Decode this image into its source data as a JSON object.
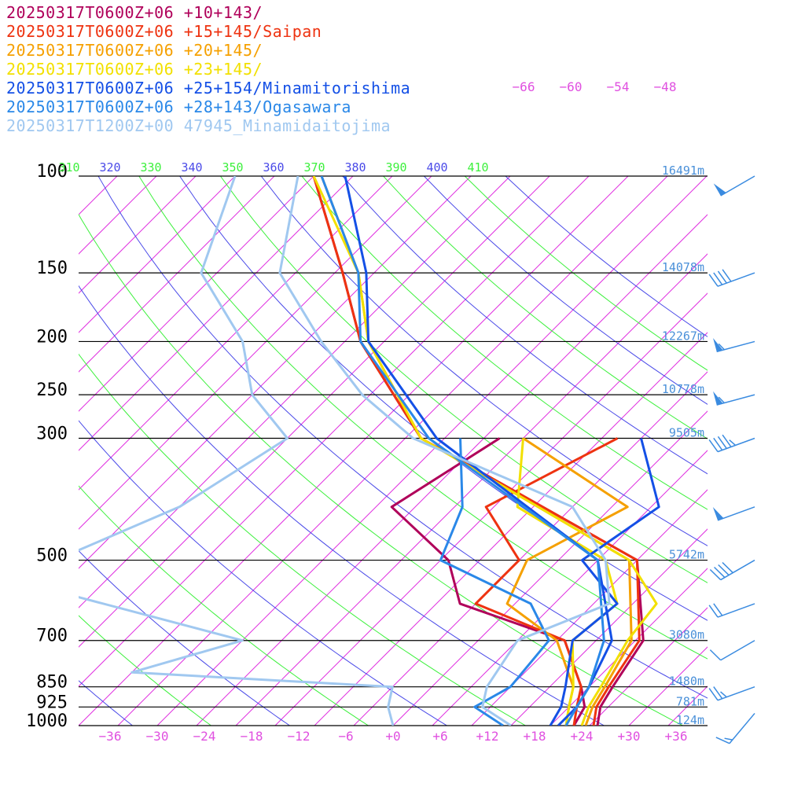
{
  "chart_data": {
    "type": "line",
    "chart_kind": "Skew-T log-P",
    "legend_placement": "top-left",
    "grid": true,
    "pressure_levels": [
      {
        "label": "100",
        "p": 100,
        "height": "16491m"
      },
      {
        "label": "150",
        "p": 150,
        "height": "14078m"
      },
      {
        "label": "200",
        "p": 200,
        "height": "12267m"
      },
      {
        "label": "250",
        "p": 250,
        "height": "10778m"
      },
      {
        "label": "300",
        "p": 300,
        "height": "9505m"
      },
      {
        "label": "500",
        "p": 500,
        "height": "5742m"
      },
      {
        "label": "700",
        "p": 700,
        "height": "3080m"
      },
      {
        "label": "850",
        "p": 850,
        "height": "1480m"
      },
      {
        "label": "925",
        "p": 925,
        "height": "781m"
      },
      {
        "label": "1000",
        "p": 1000,
        "height": "124m"
      }
    ],
    "x_ticks": [
      "−36",
      "−30",
      "−24",
      "−18",
      "−12",
      "−6",
      "+0",
      "+6",
      "+12",
      "+18",
      "+24",
      "+30",
      "+36"
    ],
    "isotherm_labels": [
      "−66",
      "−60",
      "−54",
      "−48"
    ],
    "theta_labels": [
      {
        "text": "310",
        "color": "#3cf03c"
      },
      {
        "text": "320",
        "color": "#4a4ae8"
      },
      {
        "text": "330",
        "color": "#3cf03c"
      },
      {
        "text": "340",
        "color": "#4a4ae8"
      },
      {
        "text": "350",
        "color": "#3cf03c"
      },
      {
        "text": "360",
        "color": "#4a4ae8"
      },
      {
        "text": "370",
        "color": "#3cf03c"
      },
      {
        "text": "380",
        "color": "#4a4ae8"
      },
      {
        "text": "390",
        "color": "#3cf03c"
      },
      {
        "text": "400",
        "color": "#4a4ae8"
      },
      {
        "text": "410",
        "color": "#3cf03c"
      }
    ],
    "colors": {
      "isotherm": "#e030e0",
      "dry_adiabat_a": "#3cf03c",
      "dry_adiabat_b": "#4a4ae8",
      "isobar": "#000000",
      "wind_barb": "#3a8be0",
      "tick_label": "#e050e0",
      "pressure_label": "#000000",
      "height_label": "#4a90d9"
    },
    "series": [
      {
        "name": "20250317T0600Z+06 +10+143/",
        "color": "#b0005a",
        "temp": [
          [
            1000,
            26
          ],
          [
            925,
            24
          ],
          [
            850,
            23
          ],
          [
            700,
            21
          ],
          [
            500,
            10
          ],
          [
            300,
            -33
          ],
          [
            200,
            -53
          ],
          [
            150,
            -64
          ],
          [
            100,
            -80
          ]
        ],
        "dewp": [
          [
            1000,
            23
          ],
          [
            925,
            22
          ],
          [
            850,
            19
          ],
          [
            700,
            11
          ],
          [
            600,
            -7
          ],
          [
            500,
            -14
          ],
          [
            400,
            -28
          ],
          [
            300,
            -23
          ]
        ]
      },
      {
        "name": "20250317T0600Z+06 +15+145/Saipan",
        "color": "#ee3311",
        "temp": [
          [
            1000,
            25.5
          ],
          [
            925,
            23.5
          ],
          [
            850,
            22.5
          ],
          [
            700,
            20.5
          ],
          [
            500,
            10
          ],
          [
            300,
            -33
          ],
          [
            200,
            -53
          ],
          [
            150,
            -64
          ],
          [
            100,
            -80
          ]
        ],
        "dewp": [
          [
            1000,
            23
          ],
          [
            925,
            21
          ],
          [
            850,
            19
          ],
          [
            700,
            11
          ],
          [
            600,
            -5
          ],
          [
            500,
            -5
          ],
          [
            400,
            -16
          ],
          [
            300,
            -8
          ]
        ]
      },
      {
        "name": "20250317T0600Z+06 +20+145/",
        "color": "#f5a000",
        "temp": [
          [
            1000,
            24.5
          ],
          [
            925,
            23
          ],
          [
            850,
            22
          ],
          [
            700,
            19.5
          ],
          [
            500,
            9
          ],
          [
            300,
            -33
          ],
          [
            200,
            -52
          ],
          [
            150,
            -62
          ],
          [
            100,
            -79
          ]
        ],
        "dewp": [
          [
            1000,
            22
          ],
          [
            925,
            20
          ],
          [
            850,
            18
          ],
          [
            700,
            10
          ],
          [
            600,
            -1
          ],
          [
            500,
            -4
          ],
          [
            400,
            2
          ],
          [
            300,
            -20
          ]
        ]
      },
      {
        "name": "20250317T0600Z+06 +23+145/",
        "color": "#f2e000",
        "temp": [
          [
            1000,
            24
          ],
          [
            925,
            22.5
          ],
          [
            850,
            21.5
          ],
          [
            700,
            19
          ],
          [
            600,
            18
          ],
          [
            500,
            9
          ],
          [
            300,
            -33
          ],
          [
            200,
            -52
          ],
          [
            150,
            -62
          ],
          [
            100,
            -80
          ]
        ],
        "dewp": [
          [
            1000,
            22
          ],
          [
            925,
            20
          ],
          [
            850,
            18
          ],
          [
            700,
            12
          ],
          [
            600,
            13
          ],
          [
            500,
            6
          ],
          [
            400,
            -12
          ],
          [
            300,
            -20
          ]
        ]
      },
      {
        "name": "20250317T0600Z+06 +25+154/Minamitorishima",
        "color": "#1450e6",
        "temp": [
          [
            1000,
            21
          ],
          [
            925,
            21
          ],
          [
            850,
            20
          ],
          [
            700,
            17
          ],
          [
            500,
            5
          ],
          [
            300,
            -31
          ],
          [
            200,
            -52
          ],
          [
            150,
            -61
          ],
          [
            100,
            -76
          ]
        ],
        "dewp": [
          [
            1000,
            20
          ],
          [
            925,
            19
          ],
          [
            850,
            17
          ],
          [
            700,
            12
          ],
          [
            600,
            13
          ],
          [
            500,
            3
          ],
          [
            400,
            6
          ],
          [
            300,
            -5
          ]
        ]
      },
      {
        "name": "20250317T0600Z+06 +28+143/Ogasawara",
        "color": "#2a88e8",
        "temp": [
          [
            1000,
            22
          ],
          [
            925,
            21
          ],
          [
            850,
            20
          ],
          [
            700,
            16
          ],
          [
            500,
            5
          ],
          [
            300,
            -32
          ],
          [
            200,
            -53
          ],
          [
            150,
            -62
          ],
          [
            100,
            -79
          ]
        ],
        "dewp": [
          [
            1000,
            14
          ],
          [
            925,
            8
          ],
          [
            850,
            10
          ],
          [
            700,
            9
          ],
          [
            600,
            2
          ],
          [
            500,
            -15
          ],
          [
            400,
            -19
          ],
          [
            300,
            -28
          ]
        ]
      },
      {
        "name": "20250317T1200Z+00 47945_Minamidaitojima",
        "color": "#a0c8f0",
        "temp": [
          [
            1000,
            15
          ],
          [
            925,
            9
          ],
          [
            850,
            7
          ],
          [
            700,
            5
          ],
          [
            600,
            12
          ],
          [
            500,
            6
          ],
          [
            400,
            -5
          ],
          [
            300,
            -34
          ],
          [
            250,
            -46
          ],
          [
            200,
            -58
          ],
          [
            150,
            -72
          ],
          [
            100,
            -82
          ]
        ],
        "dewp": [
          [
            1000,
            0
          ],
          [
            925,
            -3
          ],
          [
            850,
            -5
          ],
          [
            800,
            -40
          ],
          [
            700,
            -30
          ],
          [
            550,
            -65
          ],
          [
            500,
            -64
          ],
          [
            400,
            -55
          ],
          [
            300,
            -50
          ],
          [
            250,
            -60
          ],
          [
            200,
            -68
          ],
          [
            150,
            -82
          ],
          [
            100,
            -90
          ]
        ]
      }
    ],
    "wind_barbs": [
      {
        "p": 950,
        "dir": 220,
        "speed": 15
      },
      {
        "p": 850,
        "dir": 250,
        "speed": 25
      },
      {
        "p": 700,
        "dir": 240,
        "speed": 10
      },
      {
        "p": 600,
        "dir": 250,
        "speed": 20
      },
      {
        "p": 500,
        "dir": 240,
        "speed": 40
      },
      {
        "p": 400,
        "dir": 250,
        "speed": 50
      },
      {
        "p": 300,
        "dir": 250,
        "speed": 45
      },
      {
        "p": 250,
        "dir": 255,
        "speed": 55
      },
      {
        "p": 200,
        "dir": 255,
        "speed": 55
      },
      {
        "p": 150,
        "dir": 250,
        "speed": 40
      },
      {
        "p": 100,
        "dir": 240,
        "speed": 50
      }
    ]
  }
}
